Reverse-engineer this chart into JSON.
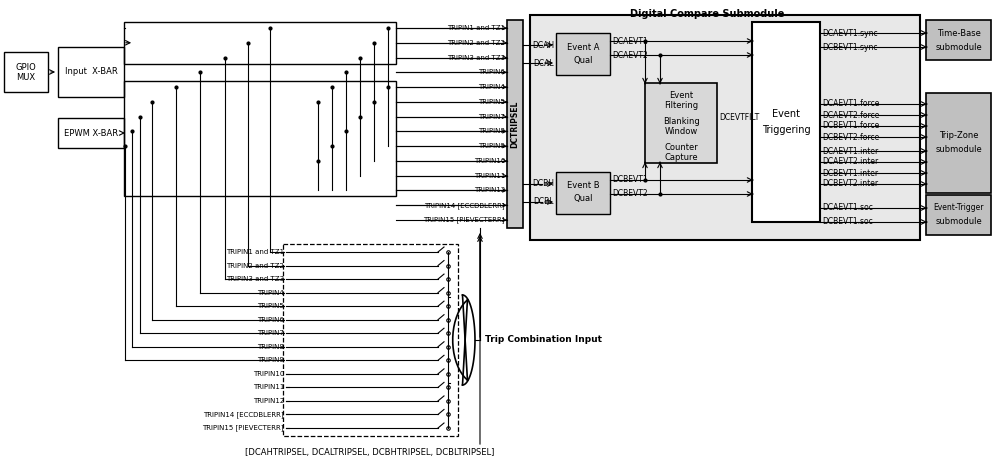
{
  "bg_color": "#ffffff",
  "title": "Digital Compare Submodule",
  "trip_inputs_upper": [
    "TRIPIN1 and TZ1",
    "TRIPIN2 and TZ2",
    "TRIPIN3 and TZ3",
    "TRIPIN6",
    "TRIPIN4",
    "TRIPIN5",
    "TRIPIN7",
    "TRIPIN8",
    "TRIPIN9",
    "TRIPIN10",
    "TRIPIN11",
    "TRIPIN12",
    "TRIPIN14 [ECCDBLERR]",
    "TRIPIN15 [PIEVECTERR]"
  ],
  "trip_inputs_lower": [
    "TRIPIN1 and TZ1",
    "TRIPIN2 and TZ2",
    "TRIPIN3 and TZ3",
    "TRIPIN4",
    "TRIPIN5",
    "TRIPIN6",
    "TRIPIN7",
    "TRIPIN8",
    "TRIPIN9",
    "TRIPIN10",
    "TRIPIN11",
    "TRIPIN12",
    "TRIPIN14 [ECCDBLERR]",
    "TRIPIN15 [PIEVECTERR]"
  ],
  "bottom_label": "[DCAHTRIPSEL, DCALTRIPSEL, DCBHTRIPSEL, DCBLTRIPSEL]",
  "output_tb": [
    "DCAEVT1.sync",
    "DCBEVT1.sync"
  ],
  "output_tz": [
    "DCAEVT1.force",
    "DCAEVT2.force",
    "DCBEVT1.force",
    "DCBEVT2.force",
    "DCAEVT1.inter",
    "DCAEVT2.inter",
    "DCBEVT1.inter",
    "DCBEVT2.inter"
  ],
  "output_et": [
    "DCAEVT1.soc",
    "DCBEVT1.soc"
  ]
}
